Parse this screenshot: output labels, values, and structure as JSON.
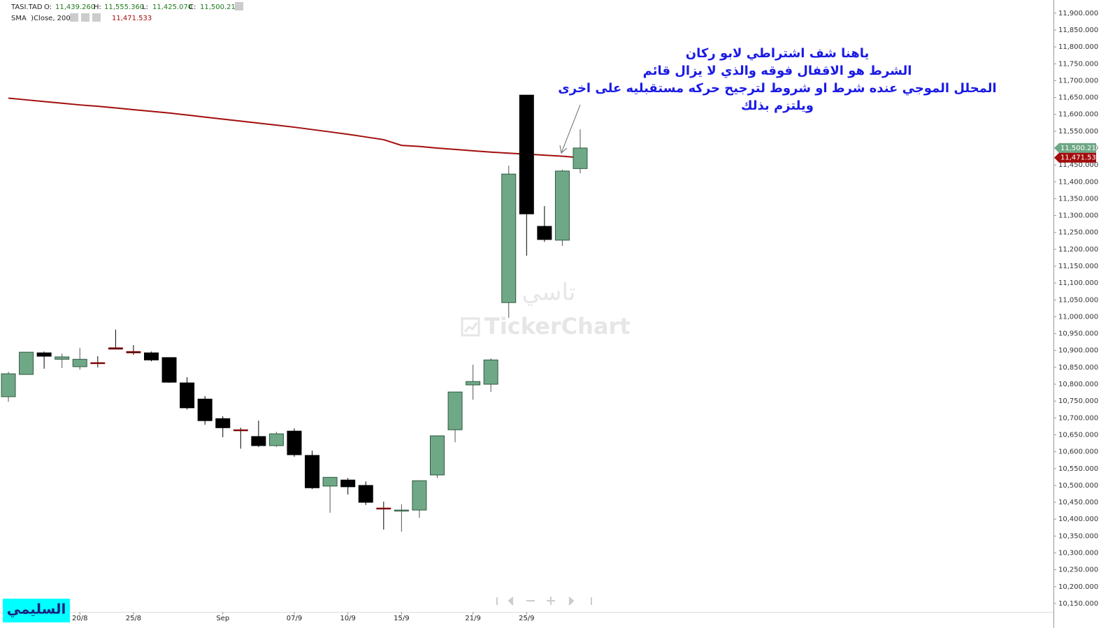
{
  "chart_data": {
    "type": "candlestick",
    "symbol": "TASI.TAD",
    "ohlc_header": {
      "labels": [
        "O:",
        "H:",
        "L:",
        "C:"
      ],
      "values": [
        "11,439.260",
        "11,555.360",
        "11,425.070",
        "11,500.210"
      ]
    },
    "categories": [
      null,
      null,
      null,
      null,
      "20/8",
      null,
      null,
      "25/8",
      null,
      null,
      null,
      null,
      "Sep",
      null,
      null,
      null,
      "07/9",
      null,
      null,
      "10/9",
      null,
      null,
      "15/9",
      null,
      null,
      null,
      "21/9",
      null,
      null,
      "25/9",
      null,
      null,
      null
    ],
    "open": [
      10763,
      10829,
      10893,
      10874,
      10852,
      10864,
      10908,
      10897,
      10893,
      10879,
      10804,
      10756,
      10698,
      10665,
      10645,
      10618,
      10661,
      10589,
      10498,
      10516,
      10500,
      10433,
      10425,
      10427,
      10531,
      10665,
      10798,
      10800,
      11042,
      11657,
      11268,
      11227,
      11439.26
    ],
    "high": [
      10837,
      10895,
      10897,
      10891,
      10908,
      10883,
      10962,
      10916,
      10897,
      10879,
      10821,
      10765,
      10705,
      10671,
      10692,
      10659,
      10669,
      10603,
      10524,
      10522,
      10512,
      10452,
      10444,
      10514,
      10647,
      10777,
      10858,
      10877,
      11448,
      11657,
      11328,
      11436,
      11555.36
    ],
    "low": [
      10748,
      10829,
      10846,
      10848,
      10843,
      10850,
      10904,
      10887,
      10868,
      10804,
      10725,
      10680,
      10643,
      10609,
      10614,
      10614,
      10585,
      10489,
      10419,
      10473,
      10442,
      10369,
      10363,
      10404,
      10522,
      10628,
      10754,
      10777,
      10997,
      11181,
      11222,
      11210,
      11425.07
    ],
    "close": [
      10831,
      10895,
      10883,
      10881,
      10874,
      10862,
      10904,
      10893,
      10872,
      10806,
      10730,
      10692,
      10671,
      10663,
      10618,
      10653,
      10591,
      10493,
      10524,
      10496,
      10450,
      10431,
      10427,
      10514,
      10647,
      10777,
      10808,
      10872,
      11423,
      11305,
      11229,
      11432,
      11500.21
    ],
    "up_color": "#6fa887",
    "down_color": "#000000",
    "sma": {
      "name": "SMA  )Close, 200(",
      "color": "#a30d0d",
      "values": [
        11648,
        11643,
        11638,
        11633,
        11628,
        11624,
        11619,
        11614,
        11609,
        11604,
        11598,
        11592,
        11586,
        11580,
        11574,
        11568,
        11562,
        11555,
        11548,
        11541,
        11533,
        11525,
        11508,
        11505,
        11500,
        11496,
        11492,
        11488,
        11485,
        11482,
        11479,
        11476,
        11471.533
      ],
      "last_label": "11,471.533"
    },
    "ylim": [
      10125,
      11939
    ],
    "yticks": [
      {
        "value": 11900,
        "label": "11,900.000"
      },
      {
        "value": 11850,
        "label": "11,850.000"
      },
      {
        "value": 11800,
        "label": "11,800.000"
      },
      {
        "value": 11750,
        "label": "11,750.000"
      },
      {
        "value": 11700,
        "label": "11,700.000"
      },
      {
        "value": 11650,
        "label": "11,650.000"
      },
      {
        "value": 11600,
        "label": "11,600.000"
      },
      {
        "value": 11550,
        "label": "11,550.000"
      },
      {
        "value": 11500,
        "label": "11,500.000"
      },
      {
        "value": 11450,
        "label": "11,450.000"
      },
      {
        "value": 11400,
        "label": "11,400.000"
      },
      {
        "value": 11350,
        "label": "11,350.000"
      },
      {
        "value": 11300,
        "label": "11,300.000"
      },
      {
        "value": 11250,
        "label": "11,250.000"
      },
      {
        "value": 11200,
        "label": "11,200.000"
      },
      {
        "value": 11150,
        "label": "11,150.000"
      },
      {
        "value": 11100,
        "label": "11,100.000"
      },
      {
        "value": 11050,
        "label": "11,050.000"
      },
      {
        "value": 11000,
        "label": "11,000.000"
      },
      {
        "value": 10950,
        "label": "10,950.000"
      },
      {
        "value": 10900,
        "label": "10,900.000"
      },
      {
        "value": 10850,
        "label": "10,850.000"
      },
      {
        "value": 10800,
        "label": "10,800.000"
      },
      {
        "value": 10750,
        "label": "10,750.000"
      },
      {
        "value": 10700,
        "label": "10,700.000"
      },
      {
        "value": 10650,
        "label": "10,650.000"
      },
      {
        "value": 10600,
        "label": "10,600.000"
      },
      {
        "value": 10550,
        "label": "10,550.000"
      },
      {
        "value": 10500,
        "label": "10,500.000"
      },
      {
        "value": 10450,
        "label": "10,450.000"
      },
      {
        "value": 10400,
        "label": "10,400.000"
      },
      {
        "value": 10350,
        "label": "10,350.000"
      },
      {
        "value": 10300,
        "label": "10,300.000"
      },
      {
        "value": 10250,
        "label": "10,250.000"
      },
      {
        "value": 10200,
        "label": "10,200.000"
      },
      {
        "value": 10150,
        "label": "10,150.000"
      }
    ],
    "grid": false,
    "annotation": {
      "lines": [
        "ياهنا شف اشتراطي لابو ركان",
        "الشرط هو الاقفال فوقه والذي لا يزال قائم",
        "المحلل الموجي عنده شرط او شروط لترجيح حركه مستقبليه على اخرى",
        "ويلتزم بذلك"
      ]
    },
    "watermark": {
      "arabic": "تاسي",
      "text": "TickerChart"
    },
    "author": "السليمي"
  }
}
